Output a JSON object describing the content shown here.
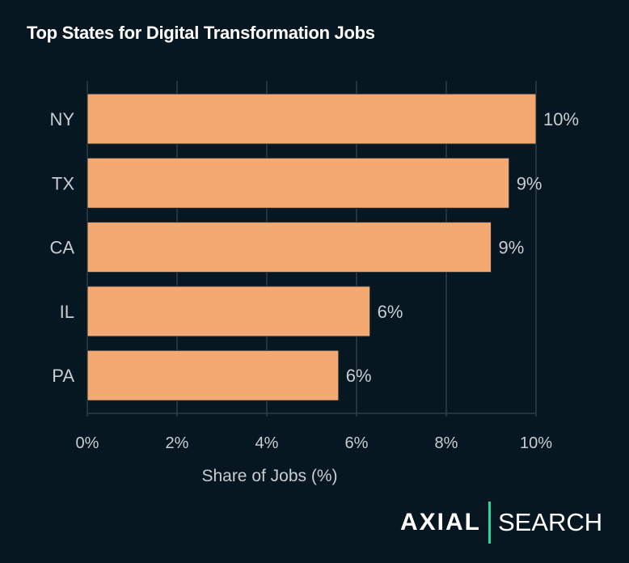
{
  "chart_data": {
    "type": "bar",
    "orientation": "horizontal",
    "title": "Top States for Digital Transformation Jobs",
    "xlabel": "Share of Jobs (%)",
    "ylabel": "",
    "categories": [
      "NY",
      "TX",
      "CA",
      "IL",
      "PA"
    ],
    "values": [
      10.0,
      9.4,
      9.0,
      6.3,
      5.6
    ],
    "data_labels": [
      "10%",
      "9%",
      "9%",
      "6%",
      "6%"
    ],
    "xlim": [
      0,
      10
    ],
    "xticks": [
      0,
      2,
      4,
      6,
      8,
      10
    ],
    "xtick_labels": [
      "0%",
      "2%",
      "4%",
      "6%",
      "8%",
      "10%"
    ],
    "grid": "vertical",
    "colors": {
      "bar": "#f4a972",
      "background": "#061721",
      "grid": "#2f3d47",
      "text": "#c9cdd1"
    }
  },
  "logo": {
    "left": "AXIAL",
    "right": "SEARCH",
    "accent": "#2fd39b"
  }
}
